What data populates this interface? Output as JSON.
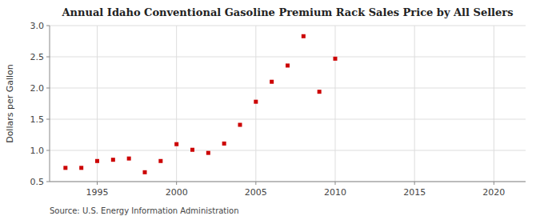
{
  "chart_data": {
    "type": "scatter",
    "title": "Annual Idaho Conventional Gasoline Premium Rack Sales Price by All Sellers",
    "ylabel": "Dollars per Gallon",
    "source": "Source: U.S. Energy Information Administration",
    "x": [
      1993,
      1994,
      1995,
      1996,
      1997,
      1998,
      1999,
      2000,
      2001,
      2002,
      2003,
      2004,
      2005,
      2006,
      2007,
      2008,
      2009,
      2010
    ],
    "values": [
      0.72,
      0.72,
      0.83,
      0.85,
      0.87,
      0.65,
      0.83,
      1.1,
      1.01,
      0.96,
      1.11,
      1.41,
      1.78,
      2.1,
      2.36,
      2.83,
      1.94,
      2.47
    ],
    "color": "#cc0000",
    "marker": "square",
    "xlim": [
      1992,
      2022
    ],
    "ylim": [
      0.5,
      3.0
    ],
    "xticks": [
      1995,
      2000,
      2005,
      2010,
      2015,
      2020
    ],
    "yticks": [
      0.5,
      {
        "value": 1.0,
        "label": "1.0"
      },
      1.5,
      {
        "value": 2.0,
        "label": "2.0"
      },
      2.5,
      {
        "value": 3.0,
        "label": "3.0"
      }
    ],
    "grid": true
  }
}
